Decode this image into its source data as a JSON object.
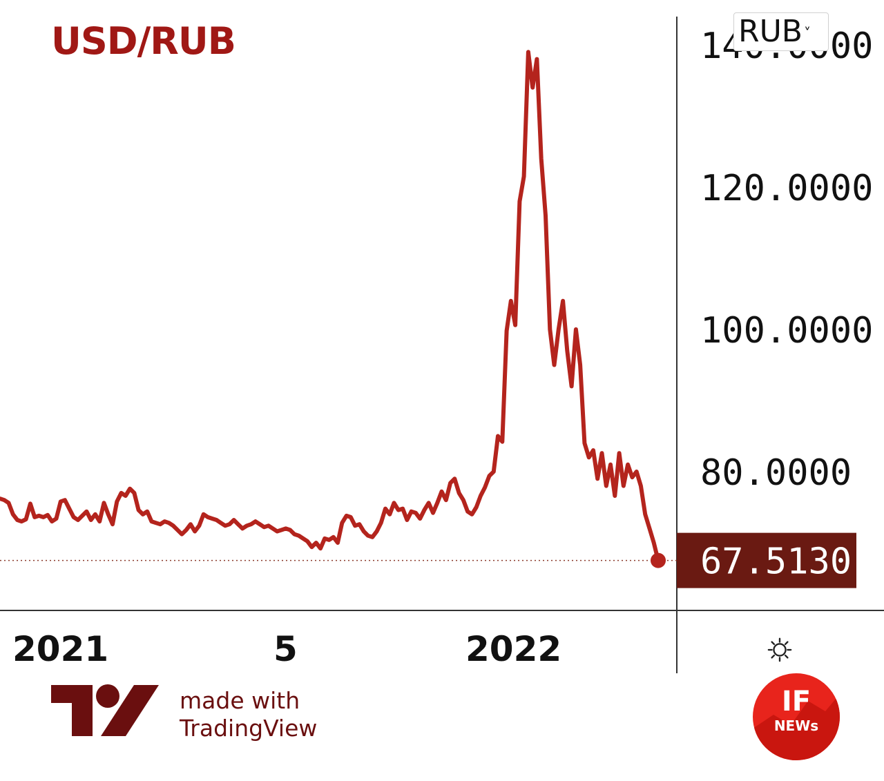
{
  "title": "USD/RUB",
  "currency_select": {
    "value": "RUB"
  },
  "current_price_label": "67.5130",
  "footer": {
    "line1": "made with",
    "line2": "TradingView"
  },
  "brand": {
    "if_big": "IF",
    "if_small": "NEWs"
  },
  "icons": {
    "settings": "gear-icon",
    "tv_logo": "tradingview-logo",
    "if_logo": "if-news-logo"
  },
  "colors": {
    "line": "#b4241d",
    "title": "#a01815",
    "price_tag": "#6a1a12"
  },
  "chart_data": {
    "type": "line",
    "title": "USD/RUB",
    "xlabel": "",
    "ylabel": "",
    "ylim": [
      62,
      144
    ],
    "y_ticks": [
      80,
      100,
      120,
      140
    ],
    "y_tick_labels": [
      "80.0000",
      "100.0000",
      "120.0000",
      "140.0000"
    ],
    "x_ticks": [
      "2021",
      "5",
      "2022"
    ],
    "grid": false,
    "last_value": 67.513,
    "series": [
      {
        "values": [
          76.2,
          76.0,
          75.6,
          74.0,
          73.2,
          73.0,
          73.3,
          75.5,
          73.6,
          73.8,
          73.6,
          73.9,
          73.0,
          73.4,
          75.8,
          76.0,
          74.8,
          73.6,
          73.2,
          73.8,
          74.4,
          73.2,
          74.0,
          73.0,
          75.6,
          74.0,
          72.6,
          75.8,
          77.0,
          76.6,
          77.6,
          77.0,
          74.6,
          74.0,
          74.4,
          73.0,
          72.8,
          72.6,
          73.0,
          72.8,
          72.4,
          71.8,
          71.2,
          71.8,
          72.6,
          71.6,
          72.4,
          74.0,
          73.6,
          73.4,
          73.2,
          72.8,
          72.4,
          72.6,
          73.2,
          72.6,
          72.0,
          72.4,
          72.6,
          73.0,
          72.6,
          72.2,
          72.4,
          72.0,
          71.6,
          71.8,
          72.0,
          71.8,
          71.2,
          71.0,
          70.6,
          70.2,
          69.4,
          70.0,
          69.2,
          70.6,
          70.4,
          70.8,
          70.0,
          72.8,
          73.8,
          73.6,
          72.4,
          72.6,
          71.6,
          71.0,
          70.8,
          71.6,
          72.8,
          74.8,
          74.0,
          75.6,
          74.6,
          74.8,
          73.2,
          74.4,
          74.2,
          73.4,
          74.6,
          75.6,
          74.2,
          75.6,
          77.2,
          76.0,
          78.4,
          79.0,
          77.0,
          76.0,
          74.4,
          74.0,
          75.0,
          76.6,
          77.8,
          79.4,
          80.0,
          85.0,
          84.2,
          99.8,
          104.0,
          100.6,
          118.0,
          121.5,
          139.0,
          134.0,
          138.0,
          124.0,
          116.0,
          100.0,
          95.0,
          100.0,
          104.0,
          97.0,
          92.0,
          100.0,
          95.0,
          84.0,
          82.0,
          83.0,
          79.0,
          82.6,
          78.0,
          81.0,
          76.6,
          82.6,
          78.0,
          81.0,
          79.2,
          80.0,
          78.0,
          74.0,
          72.0,
          70.0,
          67.513
        ]
      }
    ]
  }
}
